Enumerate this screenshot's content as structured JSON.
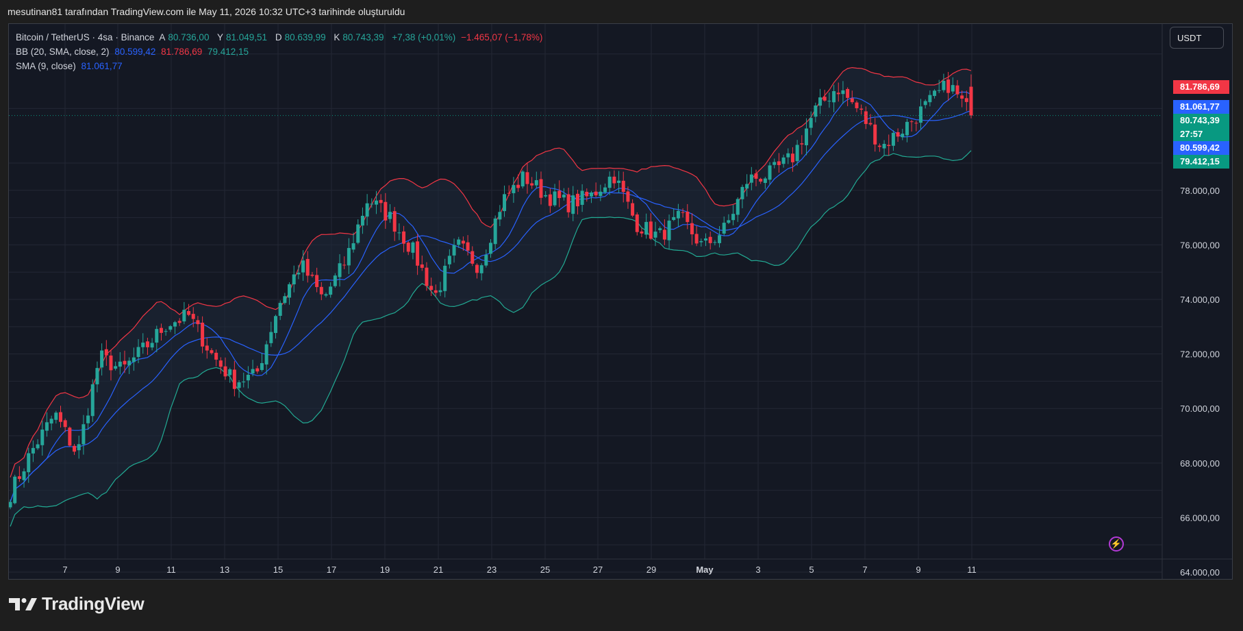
{
  "caption": "mesutinan81 tarafından TradingView.com ile May 11, 2026 10:32 UTC+3 tarihinde oluşturuldu",
  "legend": {
    "symbol": "Bitcoin / TetherUS · 4sa · Binance",
    "open_label": "A",
    "open": "80.736,00",
    "high_label": "Y",
    "high": "81.049,51",
    "low_label": "D",
    "low": "80.639,99",
    "close_label": "K",
    "close": "80.743,39",
    "change": "+7,38 (+0,01%)",
    "change2": "−1.465,07 (−1,78%)",
    "bb_label": "BB (20, SMA, close, 2)",
    "bb_basis": "80.599,42",
    "bb_upper": "81.786,69",
    "bb_lower": "79.412,15",
    "sma_label": "SMA (9, close)",
    "sma_value": "81.061,77"
  },
  "currency": "USDT",
  "price_labels": [
    {
      "text": "81.786,69",
      "value": 81786.69,
      "color": "#f23645"
    },
    {
      "text": "81.061,77",
      "value": 81061.77,
      "color": "#2962ff"
    },
    {
      "text": "80.743,39",
      "value": 80743.39,
      "color": "#089981"
    },
    {
      "text": "27:57",
      "value": 80743.39,
      "color": "#089981"
    },
    {
      "text": "80.599,42",
      "value": 80599.42,
      "color": "#2962ff"
    },
    {
      "text": "79.412,15",
      "value": 79412.15,
      "color": "#089981"
    }
  ],
  "colors": {
    "up": "#26a69a",
    "down": "#f23645",
    "bb_upper": "#f23645",
    "bb_lower": "#22ab94",
    "basis": "#2962ff",
    "sma": "#2962ff",
    "fill": "#1e2a3a"
  },
  "footer_brand": "TradingView",
  "chart_data": {
    "type": "candlestick",
    "title": "Bitcoin / TetherUS · 4sa · Binance",
    "x_ticks": [
      "7",
      "9",
      "11",
      "13",
      "15",
      "17",
      "19",
      "21",
      "23",
      "25",
      "27",
      "29",
      "May",
      "3",
      "5",
      "7",
      "9",
      "11"
    ],
    "y_ticks": [
      "64.000,00",
      "66.000,00",
      "68.000,00",
      "70.000,00",
      "72.000,00",
      "74.000,00",
      "76.000,00",
      "78.000,00"
    ],
    "y_range": [
      63700,
      84100
    ],
    "series": [
      {
        "name": "BB (20, SMA, close, 2)",
        "upper": 81786.69,
        "basis": 80599.42,
        "lower": 79412.15
      },
      {
        "name": "SMA (9, close)",
        "value": 81061.77
      }
    ],
    "close_path_anchors": [
      {
        "date": "Apr 5",
        "close": 66900
      },
      {
        "date": "Apr 6",
        "close": 68500
      },
      {
        "date": "Apr 7",
        "close": 69800
      },
      {
        "date": "Apr 8",
        "close": 68300
      },
      {
        "date": "Apr 8",
        "close": 71900
      },
      {
        "date": "Apr 9",
        "close": 71400
      },
      {
        "date": "Apr 10",
        "close": 72200
      },
      {
        "date": "Apr 11",
        "close": 73100
      },
      {
        "date": "Apr 12",
        "close": 73400
      },
      {
        "date": "Apr 12",
        "close": 72000
      },
      {
        "date": "Apr 13",
        "close": 71000
      },
      {
        "date": "Apr 14",
        "close": 71200
      },
      {
        "date": "Apr 14",
        "close": 73800
      },
      {
        "date": "Apr 15",
        "close": 75300
      },
      {
        "date": "Apr 16",
        "close": 74000
      },
      {
        "date": "Apr 17",
        "close": 75400
      },
      {
        "date": "Apr 17",
        "close": 77700
      },
      {
        "date": "Apr 18",
        "close": 77000
      },
      {
        "date": "Apr 19",
        "close": 75800
      },
      {
        "date": "Apr 20",
        "close": 74100
      },
      {
        "date": "Apr 21",
        "close": 76000
      },
      {
        "date": "Apr 21",
        "close": 75200
      },
      {
        "date": "Apr 22",
        "close": 77600
      },
      {
        "date": "Apr 23",
        "close": 78500
      },
      {
        "date": "Apr 24",
        "close": 77800
      },
      {
        "date": "Apr 25",
        "close": 77500
      },
      {
        "date": "Apr 26",
        "close": 77800
      },
      {
        "date": "Apr 27",
        "close": 78600
      },
      {
        "date": "Apr 28",
        "close": 76800
      },
      {
        "date": "Apr 28",
        "close": 76300
      },
      {
        "date": "Apr 29",
        "close": 77000
      },
      {
        "date": "Apr 30",
        "close": 75900
      },
      {
        "date": "May 1",
        "close": 76600
      },
      {
        "date": "May 2",
        "close": 78400
      },
      {
        "date": "May 3",
        "close": 78600
      },
      {
        "date": "May 4",
        "close": 79200
      },
      {
        "date": "May 5",
        "close": 80900
      },
      {
        "date": "May 6",
        "close": 81800
      },
      {
        "date": "May 7",
        "close": 80900
      },
      {
        "date": "May 8",
        "close": 79600
      },
      {
        "date": "May 9",
        "close": 80300
      },
      {
        "date": "May 10",
        "close": 81100
      },
      {
        "date": "May 11",
        "close": 81900
      },
      {
        "date": "May 11",
        "close": 80743
      }
    ]
  }
}
